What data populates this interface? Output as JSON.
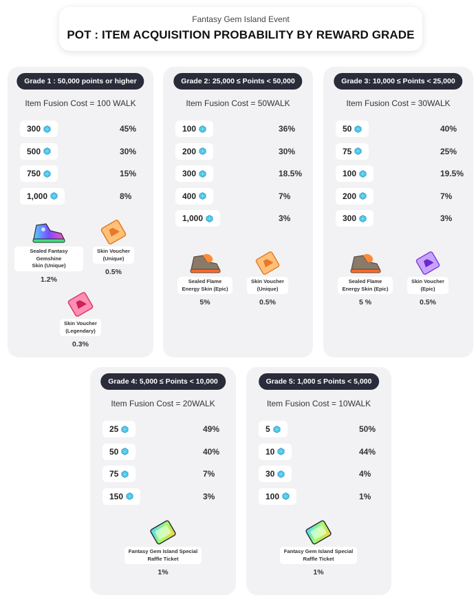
{
  "header": {
    "subtitle": "Fantasy Gem Island Event",
    "title": "POT :  ITEM ACQUISITION PROBABILITY BY REWARD GRADE"
  },
  "grades": [
    {
      "name": "Grade 1 : 50,000 points or higher",
      "cost": "Item Fusion Cost = 100 WALK",
      "rows": [
        {
          "amount": "300",
          "prob": "45%"
        },
        {
          "amount": "500",
          "prob": "30%"
        },
        {
          "amount": "750",
          "prob": "15%"
        },
        {
          "amount": "1,000",
          "prob": "8%"
        }
      ],
      "items": [
        {
          "label": "Sealed Fantasy Gemshine\nSkin (Unique)",
          "prob": "1.2%",
          "icon": "gemshine-sneaker-icon"
        },
        {
          "label": "Skin Voucher\n(Unique)",
          "prob": "0.5%",
          "icon": "orange-voucher-icon"
        },
        {
          "label": "Skin Voucher\n(Legendary)",
          "prob": "0.3%",
          "icon": "pink-voucher-icon"
        }
      ]
    },
    {
      "name": "Grade 2: 25,000 ≤ Points < 50,000",
      "cost": "Item Fusion Cost = 50WALK",
      "rows": [
        {
          "amount": "100",
          "prob": "36%"
        },
        {
          "amount": "200",
          "prob": "30%"
        },
        {
          "amount": "300",
          "prob": "18.5%"
        },
        {
          "amount": "400",
          "prob": "7%"
        },
        {
          "amount": "1,000",
          "prob": "3%"
        }
      ],
      "items": [
        {
          "label": "Sealed Flame\nEnergy Skin (Epic)",
          "prob": "5%",
          "icon": "flame-sneaker-icon"
        },
        {
          "label": "Skin Voucher\n(Unique)",
          "prob": "0.5%",
          "icon": "orange-voucher-icon"
        }
      ]
    },
    {
      "name": "Grade 3: 10,000 ≤ Points < 25,000",
      "cost": "Item Fusion Cost = 30WALK",
      "rows": [
        {
          "amount": "50",
          "prob": "40%"
        },
        {
          "amount": "75",
          "prob": "25%"
        },
        {
          "amount": "100",
          "prob": "19.5%"
        },
        {
          "amount": "200",
          "prob": "7%"
        },
        {
          "amount": "300",
          "prob": "3%"
        }
      ],
      "items": [
        {
          "label": "Sealed Flame\nEnergy Skin (Epic)",
          "prob": "5 %",
          "icon": "flame-sneaker-icon"
        },
        {
          "label": "Skin Voucher\n(Epic)",
          "prob": "0.5%",
          "icon": "purple-voucher-icon"
        }
      ]
    },
    {
      "name": "Grade 4: 5,000 ≤ Points < 10,000",
      "cost": "Item Fusion Cost = 20WALK",
      "rows": [
        {
          "amount": "25",
          "prob": "49%"
        },
        {
          "amount": "50",
          "prob": "40%"
        },
        {
          "amount": "75",
          "prob": "7%"
        },
        {
          "amount": "150",
          "prob": "3%"
        }
      ],
      "items": [
        {
          "label": "Fantasy Gem Island Special\nRaffle Ticket",
          "prob": "1%",
          "icon": "raffle-ticket-icon"
        }
      ]
    },
    {
      "name": "Grade 5: 1,000 ≤ Points < 5,000",
      "cost": "Item Fusion Cost = 10WALK",
      "rows": [
        {
          "amount": "5",
          "prob": "50%"
        },
        {
          "amount": "10",
          "prob": "44%"
        },
        {
          "amount": "30",
          "prob": "4%"
        },
        {
          "amount": "100",
          "prob": "1%"
        }
      ],
      "items": [
        {
          "label": "Fantasy Gem Island Special\nRaffle Ticket",
          "prob": "1%",
          "icon": "raffle-ticket-icon"
        }
      ]
    }
  ],
  "colors": {
    "gem": "#3fc3e8",
    "pill": "#2a2c3a",
    "card": "#f2f2f4"
  }
}
